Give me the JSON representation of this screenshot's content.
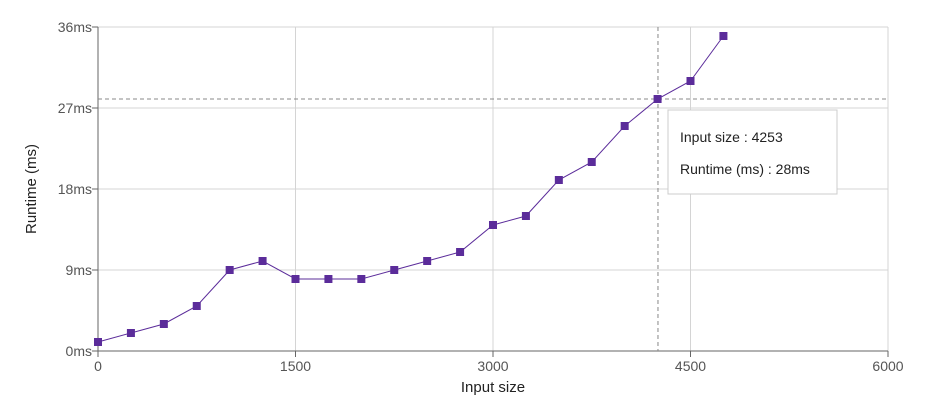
{
  "chart_data": {
    "type": "line",
    "xlabel": "Input size",
    "ylabel": "Runtime (ms)",
    "xlim": [
      0,
      6000
    ],
    "ylim": [
      0,
      36
    ],
    "x_ticks": [
      0,
      1500,
      3000,
      4500,
      6000
    ],
    "y_ticks": [
      0,
      9,
      18,
      27,
      36
    ],
    "y_tick_suffix": "ms",
    "grid": true,
    "series": [
      {
        "color": "#5b2c9a",
        "marker": "square",
        "x": [
          0,
          250,
          500,
          750,
          1000,
          1250,
          1500,
          1750,
          2000,
          2250,
          2500,
          2750,
          3000,
          3250,
          3500,
          3750,
          4000,
          4250,
          4500,
          4750
        ],
        "y": [
          1,
          2,
          3,
          5,
          9,
          10,
          8,
          8,
          8,
          9,
          10,
          11,
          14,
          15,
          19,
          21,
          25,
          28,
          30,
          35
        ]
      }
    ],
    "crosshair": {
      "x": 4253,
      "y": 28
    },
    "tooltip": {
      "line1": "Input size : 4253",
      "line2": "Runtime (ms) : 28ms"
    }
  }
}
